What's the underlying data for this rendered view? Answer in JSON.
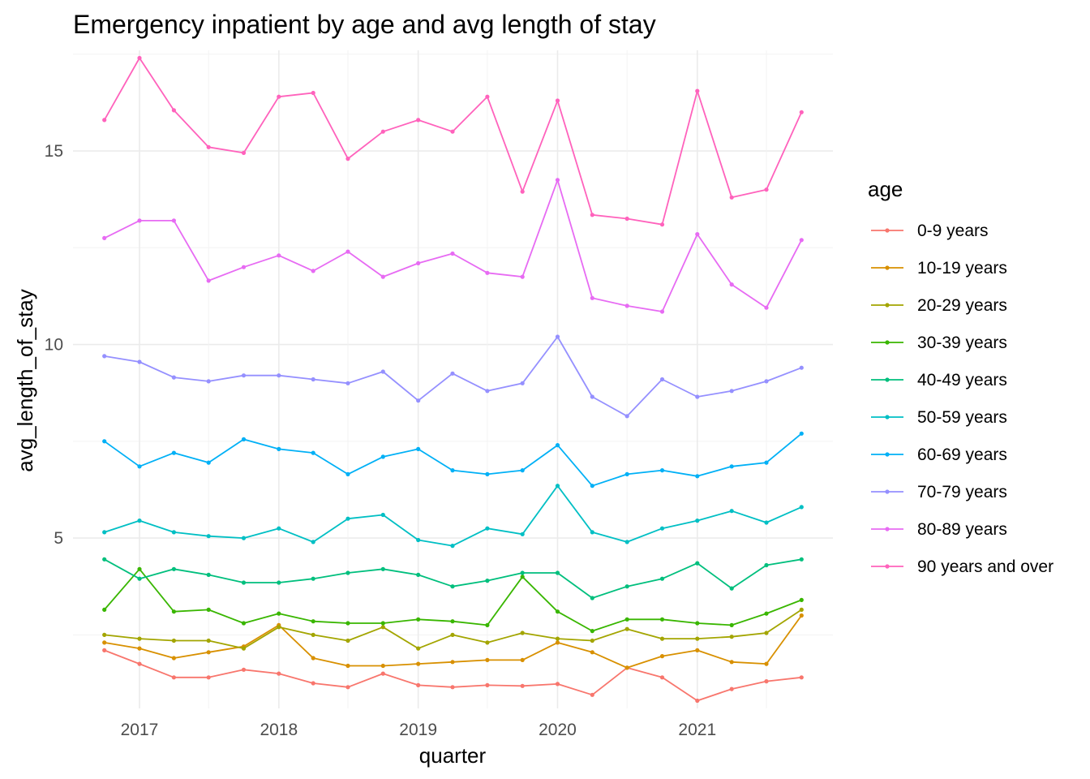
{
  "chart_data": {
    "type": "line",
    "title": "Emergency inpatient by age and avg length of stay",
    "xlabel": "quarter",
    "ylabel": "avg_length_of_stay",
    "x": [
      "2016-10-01",
      "2017-01-01",
      "2017-04-01",
      "2017-07-01",
      "2017-10-01",
      "2018-01-01",
      "2018-04-01",
      "2018-07-01",
      "2018-10-01",
      "2019-01-01",
      "2019-04-01",
      "2019-07-01",
      "2019-10-01",
      "2020-01-01",
      "2020-04-01",
      "2020-07-01",
      "2020-10-01",
      "2021-01-01",
      "2021-04-01",
      "2021-07-01",
      "2021-10-01"
    ],
    "xticks": [
      "2017",
      "2018",
      "2019",
      "2020",
      "2021"
    ],
    "yticks": [
      "5",
      "10",
      "15"
    ],
    "ylim": [
      0.6,
      17.6
    ],
    "grid": true,
    "legend": {
      "title": "age",
      "placement": "right"
    },
    "series": [
      {
        "name": "0-9 years",
        "color": "#F8766D",
        "values": [
          2.1,
          1.75,
          1.4,
          1.4,
          1.6,
          1.5,
          1.25,
          1.15,
          1.5,
          1.2,
          1.15,
          1.2,
          1.18,
          1.23,
          0.95,
          1.65,
          1.4,
          0.8,
          1.1,
          1.3,
          1.4
        ]
      },
      {
        "name": "10-19 years",
        "color": "#D89000",
        "values": [
          2.3,
          2.15,
          1.9,
          2.05,
          2.2,
          2.75,
          1.9,
          1.7,
          1.7,
          1.75,
          1.8,
          1.85,
          1.85,
          2.3,
          2.05,
          1.65,
          1.95,
          2.1,
          1.8,
          1.75,
          3.0
        ]
      },
      {
        "name": "20-29 years",
        "color": "#A3A500",
        "values": [
          2.5,
          2.4,
          2.35,
          2.35,
          2.15,
          2.7,
          2.5,
          2.35,
          2.7,
          2.15,
          2.5,
          2.3,
          2.55,
          2.4,
          2.35,
          2.65,
          2.4,
          2.4,
          2.45,
          2.55,
          3.15
        ]
      },
      {
        "name": "30-39 years",
        "color": "#39B600",
        "values": [
          3.15,
          4.2,
          3.1,
          3.15,
          2.8,
          3.05,
          2.85,
          2.8,
          2.8,
          2.9,
          2.85,
          2.75,
          4.0,
          3.1,
          2.6,
          2.9,
          2.9,
          2.8,
          2.75,
          3.05,
          3.4
        ]
      },
      {
        "name": "40-49 years",
        "color": "#00BF7D",
        "values": [
          4.45,
          3.95,
          4.2,
          4.05,
          3.85,
          3.85,
          3.95,
          4.1,
          4.2,
          4.05,
          3.75,
          3.9,
          4.1,
          4.1,
          3.45,
          3.75,
          3.95,
          4.35,
          3.7,
          4.3,
          4.45
        ]
      },
      {
        "name": "50-59 years",
        "color": "#00BFC4",
        "values": [
          5.15,
          5.45,
          5.15,
          5.05,
          5.0,
          5.25,
          4.9,
          5.5,
          5.6,
          4.95,
          4.8,
          5.25,
          5.1,
          6.35,
          5.15,
          4.9,
          5.25,
          5.45,
          5.7,
          5.4,
          5.8
        ]
      },
      {
        "name": "60-69 years",
        "color": "#00B0F6",
        "values": [
          7.5,
          6.85,
          7.2,
          6.95,
          7.55,
          7.3,
          7.2,
          6.65,
          7.1,
          7.3,
          6.75,
          6.65,
          6.75,
          7.4,
          6.35,
          6.65,
          6.75,
          6.6,
          6.85,
          6.95,
          7.7
        ]
      },
      {
        "name": "70-79 years",
        "color": "#9590FF",
        "values": [
          9.7,
          9.55,
          9.15,
          9.05,
          9.2,
          9.2,
          9.1,
          9.0,
          9.3,
          8.55,
          9.25,
          8.8,
          9.0,
          10.2,
          8.65,
          8.15,
          9.1,
          8.65,
          8.8,
          9.05,
          9.4
        ]
      },
      {
        "name": "80-89 years",
        "color": "#E76BF3",
        "values": [
          12.75,
          13.2,
          13.2,
          11.65,
          12.0,
          12.3,
          11.9,
          12.4,
          11.75,
          12.1,
          12.35,
          11.85,
          11.75,
          14.25,
          11.2,
          11.0,
          10.85,
          12.85,
          11.55,
          10.95,
          12.7
        ]
      },
      {
        "name": "90 years and over",
        "color": "#FF62BC",
        "values": [
          15.8,
          17.4,
          16.05,
          15.1,
          14.95,
          16.4,
          16.5,
          14.8,
          15.5,
          15.8,
          15.5,
          16.4,
          13.95,
          16.3,
          13.35,
          13.25,
          13.1,
          16.55,
          13.8,
          14.0,
          16.0
        ]
      }
    ]
  }
}
